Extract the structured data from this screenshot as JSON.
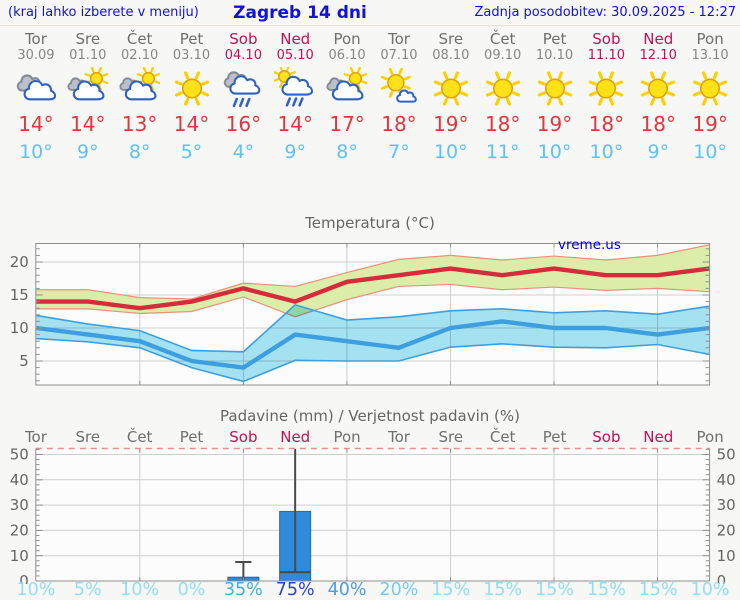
{
  "header": {
    "left_note": "(kraj lahko izberete v meniju)",
    "title": "Zagreb 14 dni",
    "updated": "Zadnja posodobitev: 30.09.2025 - 12:27"
  },
  "watermark": "vreme.us",
  "colors": {
    "header_blue": "#1212d9",
    "watermark_blue": "#0000cd",
    "weekday_name": "#6f6f6f",
    "weekday_date": "#878787",
    "weekend": "#c21157",
    "tmax_red": "#e23540",
    "tmin_blue": "#5ec2f2",
    "title_gray": "#666666",
    "axis_label": "#666666",
    "grid": "#cfcfcf",
    "spine": "#8f8f8f",
    "plot_bg": "#fcfcfc",
    "band_max_fill": "#dcedaa",
    "band_max_edge": "#ea9178",
    "band_min_fill": "#a6e4f4",
    "line_max": "#d62b3a",
    "line_min": "#3e9fe0",
    "bar_fill": "#2e8ada",
    "bar_edge": "#1e6bb8",
    "whisker": "#4a4a4a",
    "top_dashed": "#ec8d8d"
  },
  "days": [
    {
      "name": "Tor",
      "date": "30.09",
      "weekend": false,
      "icon": "cloudy",
      "tmax": "14°",
      "tmin": "10°",
      "prob": "10%",
      "prob_color": "#90dff2"
    },
    {
      "name": "Sre",
      "date": "01.10",
      "weekend": false,
      "icon": "partly-cloudy",
      "tmax": "14°",
      "tmin": "9°",
      "prob": "5%",
      "prob_color": "#90dff2"
    },
    {
      "name": "Čet",
      "date": "02.10",
      "weekend": false,
      "icon": "partly-cloudy",
      "tmax": "13°",
      "tmin": "8°",
      "prob": "10%",
      "prob_color": "#90dff2"
    },
    {
      "name": "Pet",
      "date": "03.10",
      "weekend": false,
      "icon": "sunny",
      "tmax": "14°",
      "tmin": "5°",
      "prob": "0%",
      "prob_color": "#90dff2"
    },
    {
      "name": "Sob",
      "date": "04.10",
      "weekend": true,
      "icon": "rain",
      "tmax": "16°",
      "tmin": "4°",
      "prob": "35%",
      "prob_color": "#3fb2e9"
    },
    {
      "name": "Ned",
      "date": "05.10",
      "weekend": true,
      "icon": "sun-rain",
      "tmax": "14°",
      "tmin": "9°",
      "prob": "75%",
      "prob_color": "#2b43cd"
    },
    {
      "name": "Pon",
      "date": "06.10",
      "weekend": false,
      "icon": "partly-cloudy",
      "tmax": "17°",
      "tmin": "8°",
      "prob": "40%",
      "prob_color": "#4e9ce6"
    },
    {
      "name": "Tor",
      "date": "07.10",
      "weekend": false,
      "icon": "mostly-sunny",
      "tmax": "18°",
      "tmin": "7°",
      "prob": "20%",
      "prob_color": "#72cdef"
    },
    {
      "name": "Sre",
      "date": "08.10",
      "weekend": false,
      "icon": "sunny",
      "tmax": "19°",
      "tmin": "10°",
      "prob": "15%",
      "prob_color": "#90dff2"
    },
    {
      "name": "Čet",
      "date": "09.10",
      "weekend": false,
      "icon": "sunny",
      "tmax": "18°",
      "tmin": "11°",
      "prob": "15%",
      "prob_color": "#90dff2"
    },
    {
      "name": "Pet",
      "date": "10.10",
      "weekend": false,
      "icon": "sunny",
      "tmax": "19°",
      "tmin": "10°",
      "prob": "15%",
      "prob_color": "#90dff2"
    },
    {
      "name": "Sob",
      "date": "11.10",
      "weekend": true,
      "icon": "sunny",
      "tmax": "18°",
      "tmin": "10°",
      "prob": "15%",
      "prob_color": "#90dff2"
    },
    {
      "name": "Ned",
      "date": "12.10",
      "weekend": true,
      "icon": "sunny",
      "tmax": "18°",
      "tmin": "9°",
      "prob": "15%",
      "prob_color": "#90dff2"
    },
    {
      "name": "Pon",
      "date": "13.10",
      "weekend": false,
      "icon": "sunny",
      "tmax": "19°",
      "tmin": "10°",
      "prob": "10%",
      "prob_color": "#90dff2"
    }
  ],
  "chart_data": [
    {
      "type": "line",
      "title": "Temperatura (°C)",
      "categories": [
        "Tor 30.09",
        "Sre 01.10",
        "Čet 02.10",
        "Pet 03.10",
        "Sob 04.10",
        "Ned 05.10",
        "Pon 06.10",
        "Tor 07.10",
        "Sre 08.10",
        "Čet 09.10",
        "Pet 10.10",
        "Sob 11.10",
        "Ned 12.10",
        "Pon 13.10"
      ],
      "series": [
        {
          "name": "max",
          "values": [
            14,
            14,
            13,
            14,
            16,
            14,
            17,
            18,
            19,
            18,
            19,
            18,
            18,
            19
          ]
        },
        {
          "name": "max_upper",
          "values": [
            15.8,
            15.8,
            14.6,
            14.4,
            16.8,
            16.3,
            18.4,
            20.4,
            21.0,
            20.3,
            20.9,
            20.3,
            21.0,
            22.6
          ]
        },
        {
          "name": "max_lower",
          "values": [
            12.9,
            12.9,
            12.2,
            12.5,
            14.7,
            11.7,
            14.3,
            16.3,
            16.6,
            15.8,
            16.2,
            15.7,
            16.0,
            15.5
          ]
        },
        {
          "name": "min",
          "values": [
            10,
            9,
            8,
            5,
            4,
            9,
            8,
            7,
            10,
            11,
            10,
            10,
            9,
            10
          ]
        },
        {
          "name": "min_upper",
          "values": [
            11.9,
            10.6,
            9.6,
            6.6,
            6.4,
            13.5,
            11.2,
            11.7,
            12.6,
            12.9,
            12.3,
            12.6,
            12.1,
            13.3
          ]
        },
        {
          "name": "min_lower",
          "values": [
            8.4,
            7.9,
            7.0,
            4.0,
            1.9,
            5.1,
            5.0,
            5.0,
            7.1,
            7.6,
            7.1,
            7.0,
            7.5,
            6.0
          ]
        }
      ],
      "ylim": [
        1.3,
        22.9
      ],
      "yticks": [
        5,
        10,
        15,
        20
      ],
      "grid": true,
      "legend": "none"
    },
    {
      "type": "bar",
      "title": "Padavine (mm) / Verjetnost padavin (%)",
      "categories": [
        "Tor",
        "Sre",
        "Čet",
        "Pet",
        "Sob",
        "Ned",
        "Pon",
        "Tor",
        "Sre",
        "Čet",
        "Pet",
        "Sob",
        "Ned",
        "Pon"
      ],
      "values": [
        0,
        0,
        0,
        0,
        1.5,
        27.5,
        0,
        0,
        0,
        0,
        0,
        0,
        0,
        0
      ],
      "whiskers": [
        null,
        null,
        null,
        null,
        {
          "lo": 0.6,
          "hi": 7.5
        },
        {
          "lo": 3.5,
          "hi": 53
        },
        null,
        null,
        null,
        null,
        null,
        null,
        null,
        null
      ],
      "probabilities_percent": [
        10,
        5,
        10,
        0,
        35,
        75,
        40,
        20,
        15,
        15,
        15,
        15,
        15,
        10
      ],
      "ylim": [
        0,
        53
      ],
      "yticks": [
        0,
        10,
        20,
        30,
        40,
        50
      ],
      "grid": true,
      "legend": "none"
    }
  ]
}
